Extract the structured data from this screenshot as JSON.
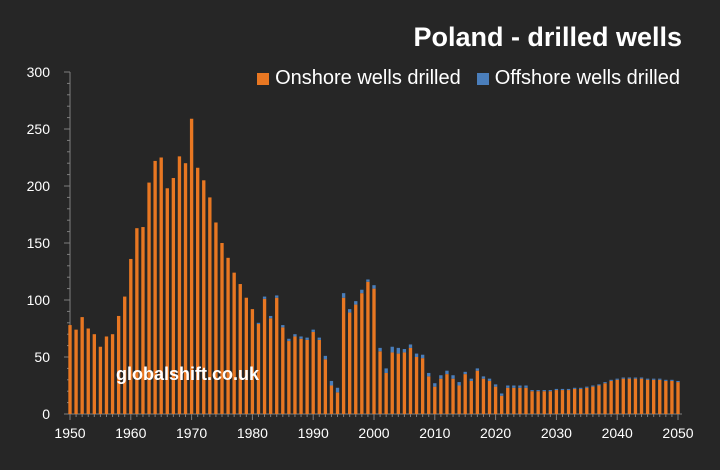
{
  "chart_data": {
    "type": "bar",
    "stacked": true,
    "title": "Poland - drilled wells",
    "xlabel": "",
    "ylabel": "",
    "ylim": [
      0,
      300
    ],
    "yticks": [
      0,
      50,
      100,
      150,
      200,
      250,
      300
    ],
    "xticks": [
      1950,
      1960,
      1970,
      1980,
      1990,
      2000,
      2010,
      2020,
      2030,
      2040,
      2050
    ],
    "x_start": 1950,
    "x_end": 2050,
    "legend_position": "top-right",
    "watermark": "globalshift.co.uk",
    "series": [
      {
        "name": "Onshore wells drilled",
        "color": "#E87722",
        "values": [
          78,
          74,
          85,
          75,
          70,
          59,
          68,
          70,
          86,
          103,
          136,
          163,
          164,
          203,
          222,
          225,
          198,
          207,
          226,
          220,
          259,
          216,
          205,
          190,
          168,
          150,
          137,
          124,
          114,
          102,
          92,
          79,
          101,
          84,
          102,
          76,
          64,
          68,
          66,
          65,
          72,
          65,
          48,
          25,
          19,
          102,
          89,
          96,
          106,
          116,
          110,
          55,
          36,
          54,
          53,
          54,
          58,
          50,
          49,
          33,
          24,
          31,
          35,
          31,
          25,
          35,
          29,
          38,
          31,
          29,
          24,
          16,
          23,
          23,
          23,
          23,
          20,
          20,
          20,
          20,
          21,
          21,
          21,
          22,
          22,
          23,
          24,
          25,
          27,
          29,
          30,
          31,
          31,
          31,
          31,
          30,
          30,
          30,
          29,
          29,
          28
        ]
      },
      {
        "name": "Offshore wells drilled",
        "color": "#4A7EBB",
        "values": [
          0,
          0,
          0,
          0,
          0,
          0,
          0,
          0,
          0,
          0,
          0,
          0,
          0,
          0,
          0,
          0,
          0,
          0,
          0,
          0,
          0,
          0,
          0,
          0,
          0,
          0,
          0,
          0,
          0,
          0,
          0,
          1,
          2,
          2,
          2,
          2,
          2,
          2,
          2,
          2,
          2,
          2,
          3,
          4,
          4,
          4,
          3,
          3,
          3,
          2,
          3,
          3,
          4,
          5,
          5,
          3,
          3,
          3,
          3,
          3,
          3,
          3,
          3,
          3,
          3,
          2,
          2,
          2,
          2,
          2,
          2,
          2,
          2,
          2,
          2,
          2,
          1,
          1,
          1,
          1,
          1,
          1,
          1,
          1,
          1,
          1,
          1,
          1,
          1,
          1,
          1,
          1,
          1,
          1,
          1,
          1,
          1,
          1,
          1,
          1,
          1
        ]
      }
    ]
  },
  "colors": {
    "background": "#262626",
    "axis": "#7F7F7F",
    "text": "#FFFFFF",
    "onshore": "#E87722",
    "offshore": "#4A7EBB"
  }
}
